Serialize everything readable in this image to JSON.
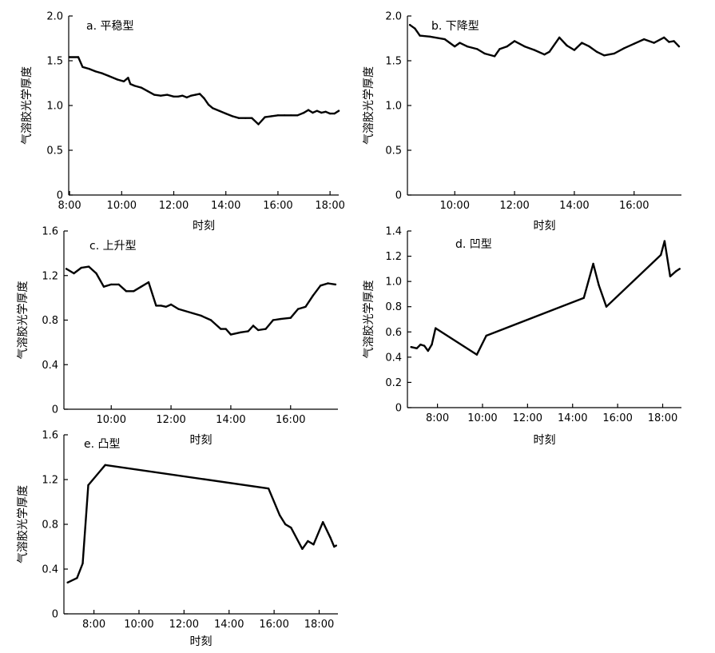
{
  "chart_data": [
    {
      "type": "line",
      "title": "a. 平稳型",
      "xlabel": "时刻",
      "ylabel": "气溶胶光学厚度",
      "ylim": [
        0,
        2.0
      ],
      "yticks": [
        0,
        0.5,
        1.0,
        1.5,
        2.0
      ],
      "ytick_labels": [
        "0",
        "0.5",
        "1.0",
        "1.5",
        "2.0"
      ],
      "xlim": [
        "7:58",
        "18:20"
      ],
      "xtick_labels": [
        "8:00",
        "10:00",
        "12:00",
        "14:00",
        "16:00",
        "18:00"
      ],
      "grid": false,
      "series": [
        {
          "x": [
            "8:00",
            "8:20",
            "8:30",
            "8:45",
            "9:00",
            "9:15",
            "9:30",
            "9:50",
            "10:05",
            "10:15",
            "10:20",
            "10:30",
            "10:45",
            "11:00",
            "11:15",
            "11:30",
            "11:45",
            "12:00",
            "12:10",
            "12:20",
            "12:30",
            "12:40",
            "12:50",
            "13:00",
            "13:10",
            "13:20",
            "13:30",
            "13:45",
            "14:00",
            "14:15",
            "14:30",
            "14:45",
            "15:00",
            "15:15",
            "15:30",
            "15:45",
            "16:00",
            "16:15",
            "16:30",
            "16:45",
            "17:00",
            "17:10",
            "17:20",
            "17:30",
            "17:40",
            "17:50",
            "18:00",
            "18:10",
            "18:20"
          ],
          "values": [
            1.54,
            1.54,
            1.43,
            1.41,
            1.38,
            1.36,
            1.33,
            1.29,
            1.27,
            1.31,
            1.24,
            1.22,
            1.2,
            1.16,
            1.12,
            1.11,
            1.12,
            1.1,
            1.1,
            1.11,
            1.09,
            1.11,
            1.12,
            1.13,
            1.08,
            1.01,
            0.97,
            0.94,
            0.91,
            0.88,
            0.86,
            0.86,
            0.86,
            0.79,
            0.87,
            0.88,
            0.89,
            0.89,
            0.89,
            0.89,
            0.92,
            0.95,
            0.92,
            0.94,
            0.92,
            0.93,
            0.91,
            0.91,
            0.94
          ]
        }
      ]
    },
    {
      "type": "line",
      "title": "b. 下降型",
      "xlabel": "时刻",
      "ylabel": "气溶胶光学厚度",
      "ylim": [
        0,
        2.0
      ],
      "yticks": [
        0,
        0.5,
        1.0,
        1.5,
        2.0
      ],
      "ytick_labels": [
        "0",
        "0.5",
        "1.0",
        "1.5",
        "2.0"
      ],
      "xlim": [
        "8:25",
        "17:35"
      ],
      "xtick_labels": [
        "10:00",
        "12:00",
        "14:00",
        "16:00"
      ],
      "grid": false,
      "series": [
        {
          "x": [
            "8:30",
            "8:40",
            "8:50",
            "9:10",
            "9:40",
            "9:50",
            "10:00",
            "10:10",
            "10:25",
            "10:45",
            "11:00",
            "11:20",
            "11:30",
            "11:45",
            "12:00",
            "12:20",
            "12:40",
            "13:00",
            "13:10",
            "13:30",
            "13:45",
            "14:00",
            "14:15",
            "14:30",
            "14:45",
            "15:00",
            "15:20",
            "15:40",
            "16:00",
            "16:20",
            "16:40",
            "17:00",
            "17:10",
            "17:20",
            "17:30"
          ],
          "values": [
            1.9,
            1.86,
            1.78,
            1.77,
            1.74,
            1.7,
            1.66,
            1.7,
            1.66,
            1.63,
            1.58,
            1.55,
            1.63,
            1.66,
            1.72,
            1.66,
            1.62,
            1.57,
            1.6,
            1.76,
            1.67,
            1.62,
            1.7,
            1.66,
            1.6,
            1.56,
            1.58,
            1.64,
            1.69,
            1.74,
            1.7,
            1.76,
            1.71,
            1.72,
            1.66
          ]
        }
      ]
    },
    {
      "type": "line",
      "title": "c. 上升型",
      "xlabel": "时刻",
      "ylabel": "气溶胶光学厚度",
      "ylim": [
        0,
        1.6
      ],
      "yticks": [
        0,
        0.4,
        0.8,
        1.2,
        1.6
      ],
      "ytick_labels": [
        "0",
        "0.4",
        "0.8",
        "1.2",
        "1.6"
      ],
      "xlim": [
        "8:25",
        "17:35"
      ],
      "xtick_labels": [
        "10:00",
        "12:00",
        "14:00",
        "16:00"
      ],
      "grid": false,
      "series": [
        {
          "x": [
            "8:30",
            "8:45",
            "9:00",
            "9:15",
            "9:30",
            "9:45",
            "10:00",
            "10:15",
            "10:30",
            "10:45",
            "11:00",
            "11:15",
            "11:30",
            "11:40",
            "11:50",
            "12:00",
            "12:15",
            "12:45",
            "13:00",
            "13:20",
            "13:40",
            "13:50",
            "14:00",
            "14:20",
            "14:35",
            "14:45",
            "14:55",
            "15:10",
            "15:25",
            "15:40",
            "16:00",
            "16:15",
            "16:30",
            "16:45",
            "17:00",
            "17:15",
            "17:30"
          ],
          "values": [
            1.26,
            1.22,
            1.27,
            1.28,
            1.22,
            1.1,
            1.12,
            1.12,
            1.06,
            1.06,
            1.1,
            1.14,
            0.93,
            0.93,
            0.92,
            0.94,
            0.9,
            0.86,
            0.84,
            0.8,
            0.72,
            0.72,
            0.67,
            0.69,
            0.7,
            0.75,
            0.71,
            0.72,
            0.8,
            0.81,
            0.82,
            0.9,
            0.92,
            1.02,
            1.11,
            1.13,
            1.12
          ]
        }
      ]
    },
    {
      "type": "line",
      "title": "d. 凹型",
      "xlabel": "时刻",
      "ylabel": "气溶胶光学厚度",
      "ylim": [
        0,
        1.4
      ],
      "yticks": [
        0,
        0.2,
        0.4,
        0.6,
        0.8,
        1.0,
        1.2,
        1.4
      ],
      "ytick_labels": [
        "0",
        "0.2",
        "0.4",
        "0.6",
        "0.8",
        "1.0",
        "1.2",
        "1.4"
      ],
      "xlim": [
        "6:40",
        "18:50"
      ],
      "xtick_labels": [
        "8:00",
        "10:00",
        "12:00",
        "14:00",
        "16:00",
        "18:00"
      ],
      "grid": false,
      "series": [
        {
          "x": [
            "6:50",
            "7:05",
            "7:15",
            "7:25",
            "7:35",
            "7:45",
            "7:55",
            "9:45",
            "10:10",
            "14:30",
            "14:55",
            "15:10",
            "15:30",
            "17:55",
            "18:05",
            "18:20",
            "18:35",
            "18:45"
          ],
          "values": [
            0.48,
            0.47,
            0.5,
            0.49,
            0.45,
            0.5,
            0.63,
            0.42,
            0.57,
            0.87,
            1.14,
            0.97,
            0.8,
            1.21,
            1.32,
            1.04,
            1.08,
            1.1
          ]
        }
      ]
    },
    {
      "type": "line",
      "title": "e. 凸型",
      "xlabel": "时刻",
      "ylabel": "气溶胶光学厚度",
      "ylim": [
        0,
        1.6
      ],
      "yticks": [
        0,
        0.4,
        0.8,
        1.2,
        1.6
      ],
      "ytick_labels": [
        "0",
        "0.4",
        "0.8",
        "1.2",
        "1.6"
      ],
      "xlim": [
        "6:40",
        "18:50"
      ],
      "xtick_labels": [
        "8:00",
        "10:00",
        "12:00",
        "14:00",
        "16:00",
        "18:00"
      ],
      "grid": false,
      "series": [
        {
          "x": [
            "6:50",
            "7:15",
            "7:30",
            "7:45",
            "8:30",
            "15:45",
            "16:15",
            "16:30",
            "16:45",
            "17:15",
            "17:30",
            "17:45",
            "18:10",
            "18:30",
            "18:40",
            "18:45"
          ],
          "values": [
            0.28,
            0.32,
            0.45,
            1.15,
            1.33,
            1.12,
            0.88,
            0.8,
            0.77,
            0.58,
            0.65,
            0.62,
            0.82,
            0.68,
            0.6,
            0.61
          ]
        }
      ]
    }
  ]
}
